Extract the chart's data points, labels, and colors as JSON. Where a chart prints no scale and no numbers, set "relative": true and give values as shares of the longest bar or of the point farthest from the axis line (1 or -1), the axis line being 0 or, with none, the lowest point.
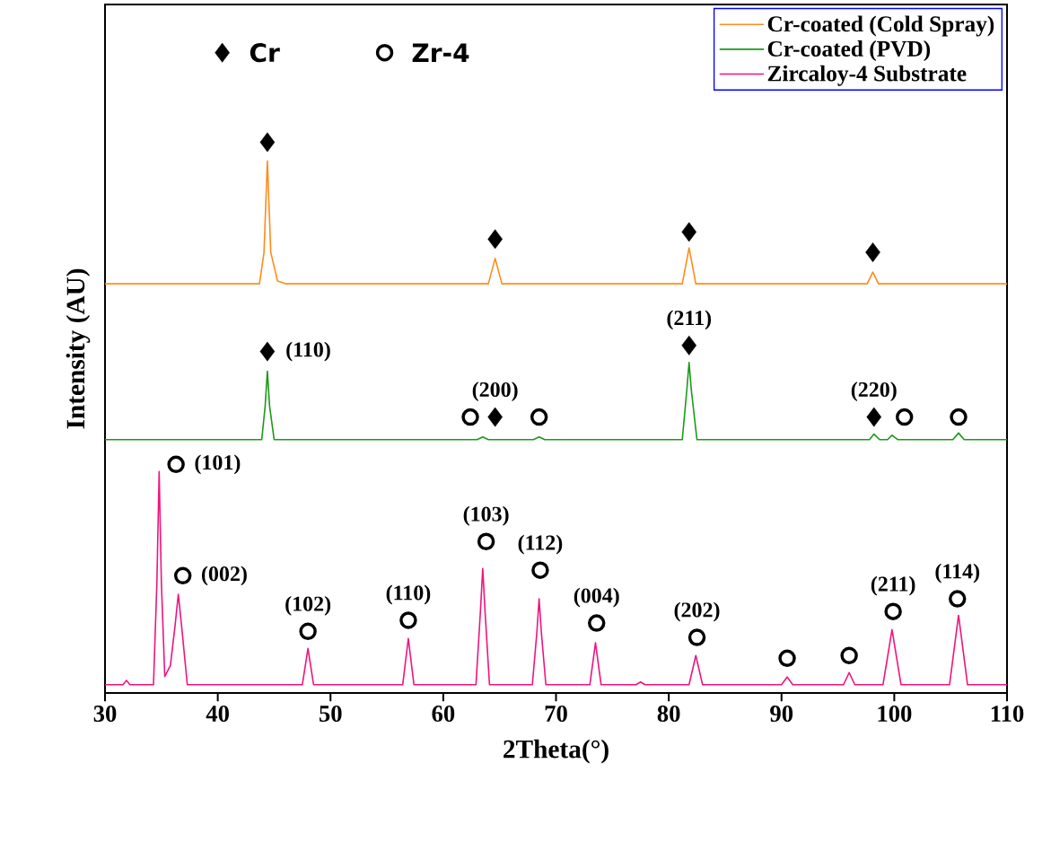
{
  "chart_data": {
    "type": "line",
    "relative": true,
    "xlabel": "2Theta(°)",
    "ylabel": "Intensity (AU)",
    "xlim": [
      30,
      110
    ],
    "xticks": [
      30,
      40,
      50,
      60,
      70,
      80,
      90,
      100,
      110
    ],
    "grid": false,
    "legend": "top right",
    "marker": "none",
    "line_style": "solid",
    "series": [
      {
        "name": "Cr-coated (Cold Spray)",
        "color": "#ff8c1a",
        "x": [
          30,
          43.7,
          44.1,
          44.4,
          44.7,
          45.3,
          46,
          64.0,
          64.6,
          65.2,
          81.2,
          81.8,
          82.4,
          97.6,
          98.1,
          98.6,
          110
        ],
        "values": [
          0.743,
          0.743,
          0.8,
          0.966,
          0.8,
          0.748,
          0.743,
          0.743,
          0.789,
          0.743,
          0.743,
          0.808,
          0.743,
          0.743,
          0.764,
          0.743,
          0.743
        ]
      },
      {
        "name": "Cr-coated (PVD)",
        "color": "#1a9a1a",
        "x": [
          30,
          43.9,
          44.2,
          44.4,
          44.6,
          45.0,
          63.0,
          63.5,
          64.0,
          68.0,
          68.5,
          69.0,
          81.2,
          81.6,
          81.8,
          82.0,
          82.5,
          97.8,
          98.2,
          98.7,
          99.4,
          99.8,
          100.3,
          105.2,
          105.7,
          106.2,
          110
        ],
        "values": [
          0.46,
          0.46,
          0.52,
          0.584,
          0.52,
          0.46,
          0.46,
          0.465,
          0.46,
          0.46,
          0.465,
          0.46,
          0.46,
          0.55,
          0.6,
          0.55,
          0.46,
          0.46,
          0.47,
          0.46,
          0.46,
          0.468,
          0.46,
          0.46,
          0.472,
          0.46,
          0.46
        ]
      },
      {
        "name": "Zircaloy-4 Substrate",
        "color": "#f0147f",
        "x": [
          30,
          31.6,
          31.9,
          32.2,
          34.3,
          34.6,
          34.8,
          35.0,
          35.3,
          35.8,
          36.2,
          36.5,
          36.8,
          37.3,
          47.5,
          48.0,
          48.5,
          56.4,
          56.9,
          57.4,
          62.9,
          63.3,
          63.5,
          63.7,
          64.1,
          67.9,
          68.3,
          68.5,
          68.7,
          69.1,
          73.0,
          73.5,
          74.0,
          77.1,
          77.5,
          77.9,
          81.8,
          82.4,
          83.0,
          90.0,
          90.5,
          91.0,
          95.5,
          96.0,
          96.5,
          99.0,
          99.8,
          100.6,
          104.9,
          105.7,
          106.5,
          110
        ],
        "values": [
          0.015,
          0.015,
          0.023,
          0.015,
          0.015,
          0.2,
          0.402,
          0.2,
          0.03,
          0.05,
          0.12,
          0.179,
          0.12,
          0.015,
          0.015,
          0.081,
          0.015,
          0.015,
          0.099,
          0.015,
          0.015,
          0.15,
          0.226,
          0.15,
          0.015,
          0.015,
          0.11,
          0.171,
          0.11,
          0.015,
          0.015,
          0.091,
          0.015,
          0.015,
          0.02,
          0.015,
          0.015,
          0.068,
          0.015,
          0.015,
          0.029,
          0.015,
          0.015,
          0.037,
          0.015,
          0.015,
          0.115,
          0.015,
          0.015,
          0.141,
          0.015,
          0.015
        ]
      },
      {
        "name": "Cr",
        "type": "scatter",
        "marker": "diamond",
        "color": "#000000",
        "x": [
          44.4,
          64.6,
          81.8,
          98.1,
          44.4,
          64.6,
          81.8,
          98.2
        ],
        "values": [
          1.0,
          0.824,
          0.837,
          0.8,
          0.62,
          0.501,
          0.631,
          0.501
        ]
      },
      {
        "name": "Zr-4",
        "type": "scatter",
        "marker": "circle",
        "color": "#000000",
        "x": [
          62.4,
          68.5,
          100.9,
          105.7,
          36.3,
          36.9,
          48.0,
          56.9,
          63.8,
          68.6,
          73.6,
          82.5,
          90.5,
          96.0,
          99.9,
          105.6
        ],
        "values": [
          0.501,
          0.501,
          0.501,
          0.501,
          0.415,
          0.213,
          0.112,
          0.132,
          0.275,
          0.223,
          0.127,
          0.101,
          0.063,
          0.068,
          0.148,
          0.171
        ]
      }
    ],
    "annotations": [
      {
        "text": "(110)",
        "x": 44.4,
        "y": 0.62
      },
      {
        "text": "(200)",
        "x": 64.6,
        "y": 0.501
      },
      {
        "text": "(211)",
        "x": 81.8,
        "y": 0.631
      },
      {
        "text": "(220)",
        "x": 98.2,
        "y": 0.501
      },
      {
        "text": "(101)",
        "x": 36.3,
        "y": 0.415
      },
      {
        "text": "(002)",
        "x": 36.9,
        "y": 0.213
      },
      {
        "text": "(102)",
        "x": 48.0,
        "y": 0.112
      },
      {
        "text": "(110)",
        "x": 56.9,
        "y": 0.132
      },
      {
        "text": "(103)",
        "x": 63.8,
        "y": 0.275
      },
      {
        "text": "(112)",
        "x": 68.6,
        "y": 0.223
      },
      {
        "text": "(004)",
        "x": 73.6,
        "y": 0.127
      },
      {
        "text": "(202)",
        "x": 82.5,
        "y": 0.101
      },
      {
        "text": "(211)",
        "x": 99.9,
        "y": 0.148
      },
      {
        "text": "(114)",
        "x": 105.6,
        "y": 0.171
      }
    ]
  }
}
